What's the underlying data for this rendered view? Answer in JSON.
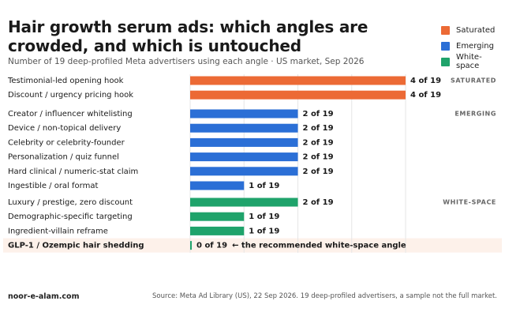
{
  "header": {
    "title": "Hair growth serum ads: which angles are crowded, and which is untouched",
    "subtitle": "Number of 19 deep-profiled Meta advertisers using each angle · US market, Sep 2026"
  },
  "legend": [
    {
      "label": "Saturated",
      "color": "#ec6a35"
    },
    {
      "label": "Emerging",
      "color": "#2b6fd6"
    },
    {
      "label": "White-space",
      "color": "#1fa36b"
    }
  ],
  "chart_data": {
    "type": "bar",
    "orientation": "horizontal",
    "total": 19,
    "xlim": [
      0,
      4
    ],
    "grid": true,
    "legend_position": "top-right",
    "groups": [
      {
        "label": "SATURATED",
        "color": "#ec6a35",
        "items": [
          {
            "category": "Testimonial-led opening hook",
            "value": 4,
            "label": "4 of 19"
          },
          {
            "category": "Discount / urgency pricing hook",
            "value": 4,
            "label": "4 of 19"
          }
        ]
      },
      {
        "label": "EMERGING",
        "color": "#2b6fd6",
        "items": [
          {
            "category": "Creator / influencer whitelisting",
            "value": 2,
            "label": "2 of 19"
          },
          {
            "category": "Device / non-topical delivery",
            "value": 2,
            "label": "2 of 19"
          },
          {
            "category": "Celebrity or celebrity-founder",
            "value": 2,
            "label": "2 of 19"
          },
          {
            "category": "Personalization / quiz funnel",
            "value": 2,
            "label": "2 of 19"
          },
          {
            "category": "Hard clinical / numeric-stat claim",
            "value": 2,
            "label": "2 of 19"
          },
          {
            "category": "Ingestible / oral format",
            "value": 1,
            "label": "1 of 19"
          }
        ]
      },
      {
        "label": "WHITE-SPACE",
        "color": "#1fa36b",
        "items": [
          {
            "category": "Luxury / prestige, zero discount",
            "value": 2,
            "label": "2 of 19"
          },
          {
            "category": "Demographic-specific targeting",
            "value": 1,
            "label": "1 of 19"
          },
          {
            "category": "Ingredient-villain reframe",
            "value": 1,
            "label": "1 of 19"
          },
          {
            "category": "GLP-1 / Ozempic hair shedding",
            "value": 0,
            "label": "0 of 19",
            "highlight": true,
            "annotation": "← the recommended white-space angle"
          }
        ]
      }
    ],
    "highlight_color": "#fdf1ea"
  },
  "footer": {
    "credit": "noor-e-alam.com",
    "source": "Source: Meta Ad Library (US), 22 Sep 2026. 19 deep-profiled advertisers, a sample not the full market."
  }
}
